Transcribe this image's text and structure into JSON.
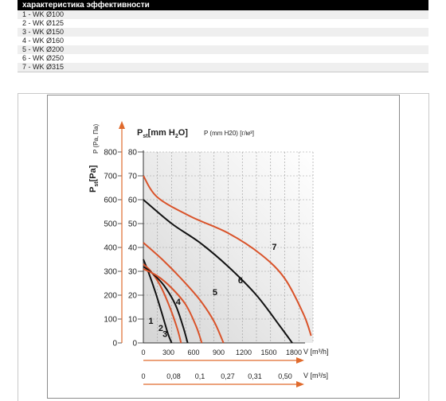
{
  "header": {
    "title": "характеристика эффективности"
  },
  "spec_rows": [
    "1 - WK Ø100",
    "2 - WK Ø125",
    "3 - WK Ø150",
    "4 - WK Ø160",
    "5 - WK Ø200",
    "6 - WK Ø250",
    "7 - WK Ø315"
  ],
  "chart_data": {
    "type": "line",
    "y_left_label": "Pst [Pa]",
    "y_left_label_main": "P",
    "y_left_label_sub": "st",
    "y_left_label_unit": "[Pa]",
    "y_left_top_label": "P (Pa, Па)",
    "y_right_label": "Pst [mm H2O]",
    "y_right_label_main": "P",
    "y_right_label_sub": "st",
    "y_right_label_unit": "[mm H",
    "y_right_label_sub2": "2",
    "y_right_label_tail": "O]",
    "y_right_top_label": "P (mm H20) [г/м³]",
    "x1_label": "V [m³/h]",
    "x2_label": "V [m³/s]",
    "y_left_ticks": [
      "0",
      "100",
      "200",
      "300",
      "400",
      "500",
      "600",
      "700",
      "800"
    ],
    "y_right_ticks": [
      "0",
      "10",
      "20",
      "30",
      "40",
      "50",
      "60",
      "70",
      "80"
    ],
    "x1_ticks": [
      "0",
      "300",
      "600",
      "900",
      "1200",
      "1500",
      "1800"
    ],
    "x2_ticks": [
      "0",
      "0,08",
      "0,1",
      "0,27",
      "0,31",
      "0,50"
    ],
    "xlim": [
      0,
      1800
    ],
    "ylim": [
      0,
      800
    ],
    "grid": true,
    "colors": {
      "black_curve": "#111111",
      "orange_curve": "#d9532a",
      "axis_arrow": "#e06a2c"
    },
    "series": [
      {
        "name": "1",
        "color": "#111111",
        "x": [
          0,
          60,
          130,
          200,
          260,
          300
        ],
        "y": [
          350,
          290,
          210,
          120,
          40,
          0
        ]
      },
      {
        "name": "2",
        "color": "#d9532a",
        "x": [
          0,
          80,
          180,
          280,
          360,
          400
        ],
        "y": [
          330,
          300,
          240,
          150,
          60,
          0
        ]
      },
      {
        "name": "3",
        "color": "#111111",
        "x": [
          0,
          100,
          220,
          340,
          420,
          470
        ],
        "y": [
          320,
          290,
          240,
          160,
          70,
          0
        ]
      },
      {
        "name": "4",
        "color": "#d9532a",
        "x": [
          0,
          150,
          300,
          450,
          560,
          620
        ],
        "y": [
          310,
          280,
          230,
          160,
          70,
          0
        ]
      },
      {
        "name": "5",
        "color": "#d9532a",
        "x": [
          0,
          200,
          400,
          600,
          750,
          850
        ],
        "y": [
          420,
          350,
          270,
          180,
          90,
          0
        ]
      },
      {
        "name": "6",
        "color": "#111111",
        "x": [
          0,
          300,
          600,
          900,
          1200,
          1450,
          1580
        ],
        "y": [
          600,
          500,
          420,
          320,
          200,
          70,
          0
        ]
      },
      {
        "name": "7",
        "color": "#d9532a",
        "x": [
          0,
          150,
          500,
          900,
          1250,
          1500,
          1700,
          1780
        ],
        "y": [
          700,
          610,
          530,
          460,
          370,
          270,
          120,
          30
        ]
      }
    ],
    "curve_labels": [
      {
        "text": "1",
        "x": 80,
        "y": 80
      },
      {
        "text": "2",
        "x": 185,
        "y": 50
      },
      {
        "text": "3",
        "x": 230,
        "y": 25
      },
      {
        "text": "4",
        "x": 370,
        "y": 160
      },
      {
        "text": "5",
        "x": 760,
        "y": 200
      },
      {
        "text": "6",
        "x": 1030,
        "y": 250
      },
      {
        "text": "7",
        "x": 1390,
        "y": 390
      }
    ]
  }
}
